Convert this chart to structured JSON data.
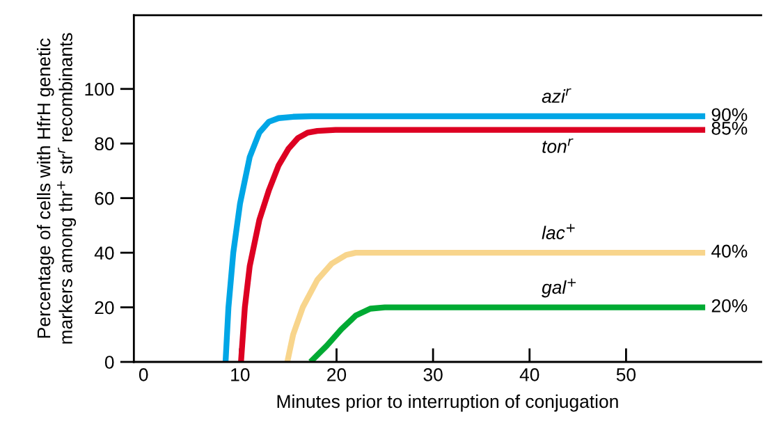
{
  "chart_data": {
    "type": "line",
    "xlabel": "Minutes prior to interruption of conjugation",
    "ylabel": "Percentage of cells with HfrH genetic\nmarkers among thr$^{+}$ str$^{r}$ recombinants",
    "xlim": [
      -1,
      64
    ],
    "ylim": [
      0,
      127
    ],
    "xticks": [
      0,
      10,
      20,
      30,
      40,
      50
    ],
    "yticks": [
      0,
      20,
      40,
      60,
      80,
      100
    ],
    "grid": false,
    "legend": false,
    "marker": "none",
    "line_style": "solid",
    "series": [
      {
        "name": "azi$^{r}$",
        "color": "#00a6e6",
        "x": [
          8.5,
          8.8,
          9.3,
          10,
          11,
          12,
          13,
          14,
          15.5,
          17.4,
          58.2
        ],
        "values": [
          0,
          20,
          40,
          58,
          75,
          84,
          88,
          89.3,
          89.8,
          90,
          90
        ],
        "value_labels": [
          null,
          null,
          null,
          null,
          null,
          null,
          null,
          null,
          null,
          null,
          "90%"
        ]
      },
      {
        "name": "ton$^{r}$",
        "color": "#dd0022",
        "x": [
          10.1,
          10.5,
          11,
          12,
          13,
          14,
          15,
          16,
          17,
          18,
          19.9,
          58.2
        ],
        "values": [
          0,
          20,
          35,
          52,
          63,
          72,
          78,
          82,
          84,
          84.6,
          85,
          85
        ],
        "value_labels": [
          null,
          null,
          null,
          null,
          null,
          null,
          null,
          null,
          null,
          null,
          null,
          "85%"
        ]
      },
      {
        "name": "lac$^{+}$",
        "color": "#f8d58c",
        "x": [
          14.9,
          15.5,
          16.5,
          18,
          19.5,
          21,
          22,
          58.2
        ],
        "values": [
          0,
          10,
          20,
          30,
          36,
          39.2,
          40,
          40
        ],
        "value_labels": [
          null,
          null,
          null,
          null,
          null,
          null,
          null,
          "40%"
        ]
      },
      {
        "name": "gal$^{+}$",
        "color": "#00aa33",
        "x": [
          17.3,
          19,
          20.5,
          22,
          23.5,
          25,
          58.2
        ],
        "values": [
          0,
          6,
          12,
          17,
          19.5,
          20,
          20
        ],
        "value_labels": [
          null,
          null,
          null,
          null,
          null,
          null,
          "20%"
        ]
      }
    ]
  }
}
